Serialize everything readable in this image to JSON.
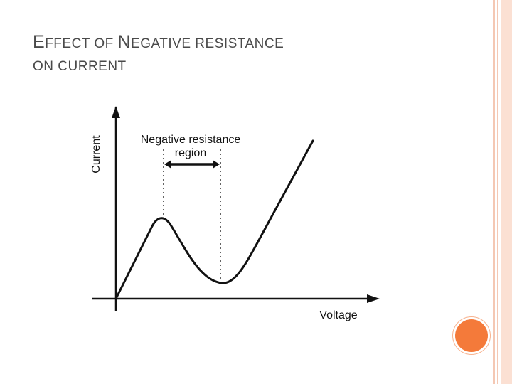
{
  "slide": {
    "title_line1_initial": "E",
    "title_line1_rest": "FFECT OF ",
    "title_line1_initial2": "N",
    "title_line1_rest2": "EGATIVE RESISTANCE",
    "title_line2": "ON CURRENT"
  },
  "diagram": {
    "y_axis_label": "Current",
    "x_axis_label": "Voltage",
    "region_label_line1": "Negative resistance",
    "region_label_line2": "region"
  },
  "colors": {
    "title_text": "#4a4a4a",
    "accent_circle": "#f47a3a",
    "side_bars": "#f4c8b4",
    "curve": "#111111"
  }
}
